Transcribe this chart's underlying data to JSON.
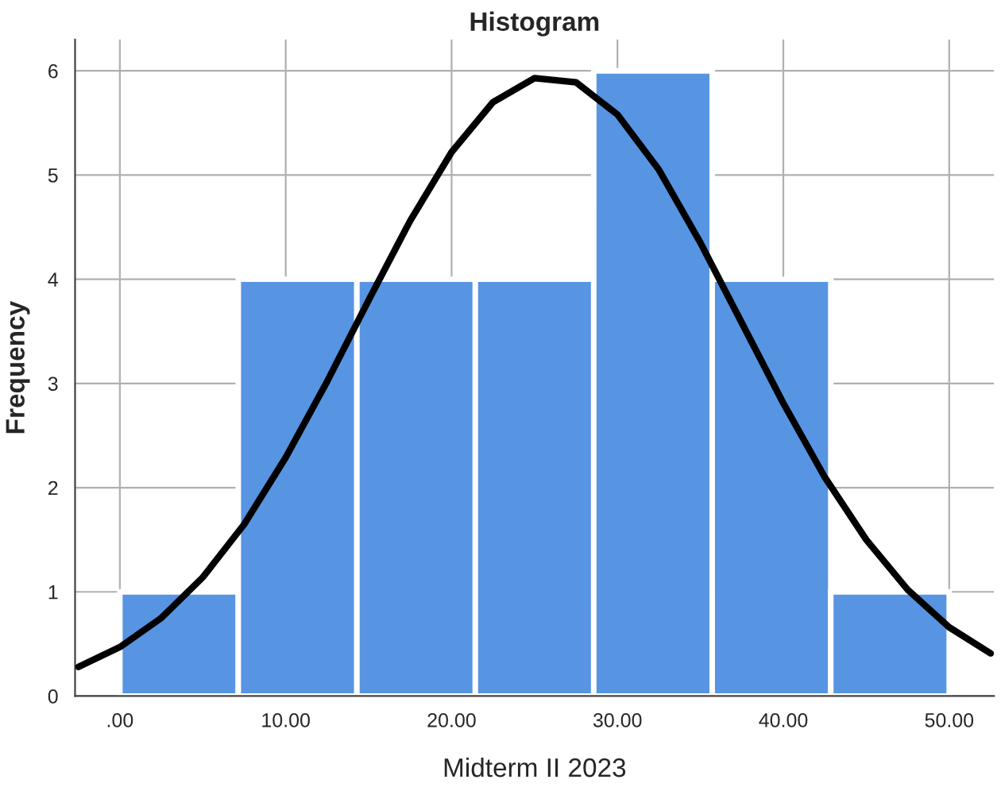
{
  "chart_data": {
    "type": "histogram",
    "title": "Histogram",
    "xlabel": "Midterm II 2023",
    "ylabel": "Frequency",
    "series": [
      {
        "bins": [
          0,
          7.14,
          14.29,
          21.43,
          28.57,
          35.71,
          42.86,
          50
        ],
        "values": [
          1,
          4,
          4,
          4,
          6,
          4,
          1
        ],
        "color": "#5795e3"
      },
      {
        "type": "line",
        "color": "#000000",
        "x": [
          -2.5,
          0,
          2.5,
          5,
          7.5,
          10,
          12.5,
          15,
          17.5,
          20,
          22.5,
          25,
          27.5,
          30,
          32.5,
          35,
          37.5,
          40,
          42.5,
          45,
          47.5,
          50,
          52.5
        ],
        "values": [
          0.28,
          0.47,
          0.75,
          1.14,
          1.65,
          2.29,
          3.02,
          3.8,
          4.56,
          5.22,
          5.7,
          5.93,
          5.89,
          5.58,
          5.05,
          4.35,
          3.58,
          2.81,
          2.1,
          1.5,
          1.02,
          0.66,
          0.41
        ]
      }
    ],
    "xlim": [
      -2.7,
      52.7
    ],
    "ylim": [
      0,
      6.3
    ],
    "xticks": [
      {
        "value": 0,
        "label": ".00"
      },
      {
        "value": 10,
        "label": "10.00"
      },
      {
        "value": 20,
        "label": "20.00"
      },
      {
        "value": 30,
        "label": "30.00"
      },
      {
        "value": 40,
        "label": "40.00"
      },
      {
        "value": 50,
        "label": "50.00"
      }
    ],
    "yticks": [
      0,
      1,
      2,
      3,
      4,
      5,
      6
    ],
    "grid": true,
    "legend": false
  }
}
